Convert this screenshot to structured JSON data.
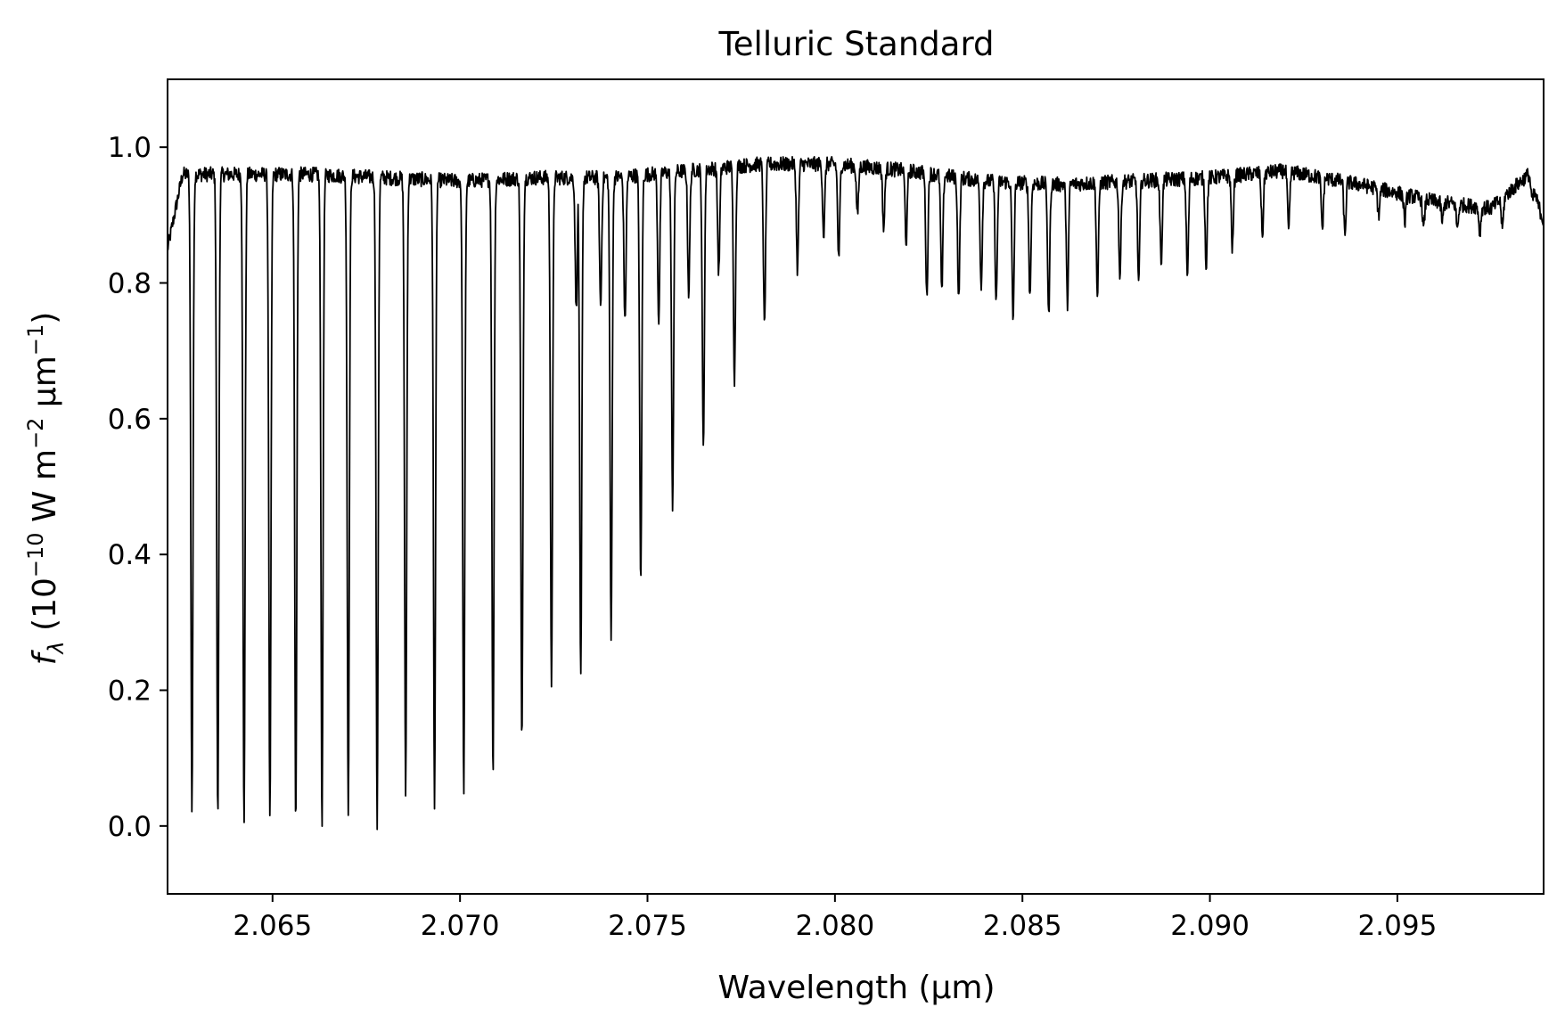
{
  "chart_data": {
    "type": "line",
    "title": "Telluric Standard",
    "xlabel": "Wavelength (μm)",
    "ylabel": {
      "prefix": "f",
      "subscript": "λ",
      "open": " (10",
      "exp1": "−10",
      "mid": " W m",
      "exp2": "−2",
      "mid2": " μm",
      "exp3": "−1",
      "close": ")"
    },
    "xlim": [
      2.0622,
      2.0989
    ],
    "ylim": [
      -0.1,
      1.1
    ],
    "xticks": [
      2.065,
      2.07,
      2.075,
      2.08,
      2.085,
      2.09,
      2.095
    ],
    "xtick_labels": [
      "2.065",
      "2.070",
      "2.075",
      "2.080",
      "2.085",
      "2.090",
      "2.095"
    ],
    "yticks": [
      0.0,
      0.2,
      0.4,
      0.6,
      0.8,
      1.0
    ],
    "ytick_labels": [
      "0.0",
      "0.2",
      "0.4",
      "0.6",
      "0.8",
      "1.0"
    ],
    "grid": false,
    "line_color": "#000000",
    "spectrum": {
      "continuum": [
        [
          2.0622,
          0.85
        ],
        [
          2.0626,
          0.96
        ],
        [
          2.064,
          0.96
        ],
        [
          2.066,
          0.96
        ],
        [
          2.068,
          0.955
        ],
        [
          2.07,
          0.95
        ],
        [
          2.072,
          0.955
        ],
        [
          2.074,
          0.955
        ],
        [
          2.076,
          0.965
        ],
        [
          2.078,
          0.975
        ],
        [
          2.08,
          0.975
        ],
        [
          2.082,
          0.965
        ],
        [
          2.084,
          0.95
        ],
        [
          2.086,
          0.945
        ],
        [
          2.088,
          0.95
        ],
        [
          2.09,
          0.955
        ],
        [
          2.092,
          0.965
        ],
        [
          2.094,
          0.945
        ],
        [
          2.096,
          0.92
        ],
        [
          2.0975,
          0.91
        ],
        [
          2.0985,
          0.96
        ],
        [
          2.0989,
          0.89
        ]
      ],
      "lines": [
        [
          2.06285,
          0.025
        ],
        [
          2.06354,
          0.012
        ],
        [
          2.06424,
          0.003
        ],
        [
          2.06493,
          0.003
        ],
        [
          2.06562,
          0.002
        ],
        [
          2.06632,
          0.003
        ],
        [
          2.06702,
          0.025
        ],
        [
          2.06779,
          0.001
        ],
        [
          2.06855,
          0.048
        ],
        [
          2.06932,
          0.036
        ],
        [
          2.0701,
          0.052
        ],
        [
          2.07088,
          0.074
        ],
        [
          2.07165,
          0.118
        ],
        [
          2.07244,
          0.215
        ],
        [
          2.07322,
          0.212
        ],
        [
          2.07403,
          0.275
        ],
        [
          2.07482,
          0.356
        ],
        [
          2.07567,
          0.473
        ],
        [
          2.07649,
          0.555
        ],
        [
          2.07732,
          0.658
        ],
        [
          2.07812,
          0.735
        ],
        [
          2.0731,
          0.76
        ],
        [
          2.07375,
          0.765
        ],
        [
          2.0744,
          0.74
        ],
        [
          2.0753,
          0.745
        ],
        [
          2.0761,
          0.785
        ],
        [
          2.0769,
          0.815
        ],
        [
          2.079,
          0.82
        ],
        [
          2.0797,
          0.87
        ],
        [
          2.0801,
          0.835
        ],
        [
          2.0806,
          0.9
        ],
        [
          2.0813,
          0.88
        ],
        [
          2.0819,
          0.86
        ],
        [
          2.08245,
          0.778
        ],
        [
          2.08285,
          0.785
        ],
        [
          2.0833,
          0.775
        ],
        [
          2.0839,
          0.795
        ],
        [
          2.0843,
          0.77
        ],
        [
          2.08475,
          0.745
        ],
        [
          2.0852,
          0.78
        ],
        [
          2.0857,
          0.75
        ],
        [
          2.0862,
          0.77
        ],
        [
          2.087,
          0.78
        ],
        [
          2.0876,
          0.81
        ],
        [
          2.0881,
          0.8
        ],
        [
          2.0887,
          0.83
        ],
        [
          2.0894,
          0.81
        ],
        [
          2.0899,
          0.825
        ],
        [
          2.0906,
          0.85
        ],
        [
          2.0914,
          0.87
        ],
        [
          2.0921,
          0.875
        ],
        [
          2.093,
          0.88
        ],
        [
          2.0936,
          0.87
        ],
        [
          2.0945,
          0.9
        ],
        [
          2.0952,
          0.89
        ],
        [
          2.0957,
          0.88
        ],
        [
          2.0962,
          0.89
        ],
        [
          2.0966,
          0.88
        ],
        [
          2.0972,
          0.875
        ],
        [
          2.0978,
          0.88
        ],
        [
          2.0986,
          0.92
        ]
      ]
    }
  }
}
